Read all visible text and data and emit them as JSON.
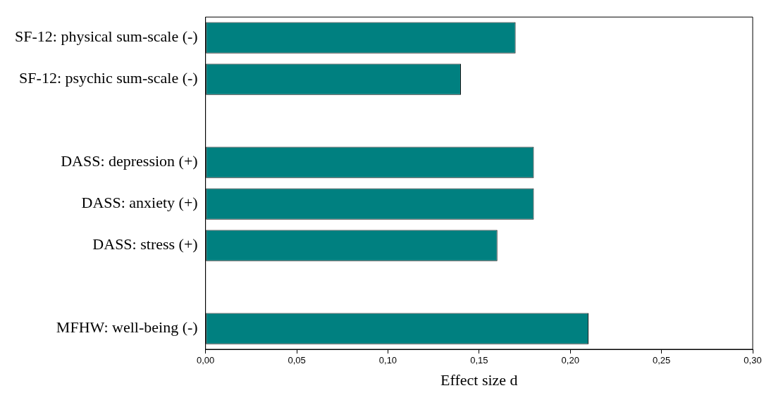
{
  "chart_data": {
    "type": "bar",
    "orientation": "horizontal",
    "xlabel": "Effect size d",
    "categories": [
      "SF-12: physical sum-scale (-)",
      "SF-12: psychic sum-scale (-)",
      null,
      "DASS: depression (+)",
      "DASS: anxiety (+)",
      "DASS: stress (+)",
      null,
      "MFHW: well-being (-)"
    ],
    "values": [
      0.17,
      0.14,
      null,
      0.18,
      0.18,
      0.16,
      null,
      0.21
    ],
    "color": "#008080",
    "xlim": [
      0,
      0.3
    ],
    "xticks": [
      {
        "value": 0,
        "label": "0,00"
      },
      {
        "value": 0.05,
        "label": "0,05"
      },
      {
        "value": 0.1,
        "label": "0,10"
      },
      {
        "value": 0.15,
        "label": "0,15"
      },
      {
        "value": 0.2,
        "label": "0,20"
      },
      {
        "value": 0.25,
        "label": "0,25"
      },
      {
        "value": 0.3,
        "label": "0,30"
      }
    ]
  }
}
